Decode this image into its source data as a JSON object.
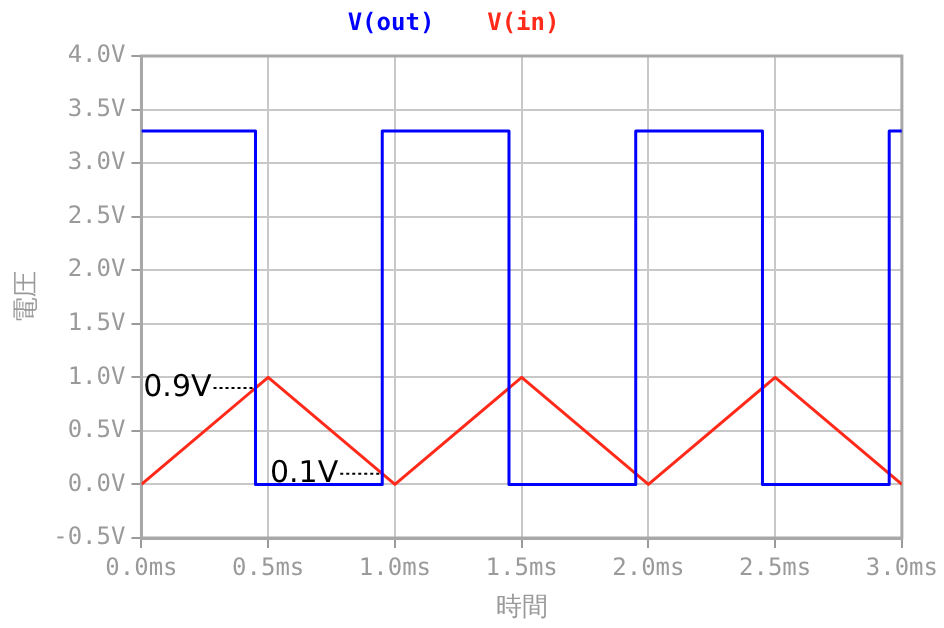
{
  "chart_data": {
    "type": "line",
    "xlabel": "時間",
    "ylabel": "電圧",
    "series": [
      {
        "name": "V(out)",
        "color": "#0000ff",
        "x": [
          0,
          0.45,
          0.45,
          0.95,
          0.95,
          1.45,
          1.45,
          1.95,
          1.95,
          2.45,
          2.45,
          2.95,
          2.95,
          3.0
        ],
        "values": [
          3.3,
          3.3,
          0,
          0,
          3.3,
          3.3,
          0,
          0,
          3.3,
          3.3,
          0,
          0,
          3.3,
          3.3
        ]
      },
      {
        "name": "V(in)",
        "color": "#ff2a1a",
        "x": [
          0,
          0.5,
          1.0,
          1.5,
          2.0,
          2.5,
          3.0
        ],
        "values": [
          0,
          1,
          0,
          1,
          0,
          1,
          0
        ]
      }
    ],
    "xlim": [
      0,
      3.0
    ],
    "xticks": [
      {
        "value": 0,
        "label": "0.0ms"
      },
      {
        "value": 0.5,
        "label": "0.5ms"
      },
      {
        "value": 1.0,
        "label": "1.0ms"
      },
      {
        "value": 1.5,
        "label": "1.5ms"
      },
      {
        "value": 2.0,
        "label": "2.0ms"
      },
      {
        "value": 2.5,
        "label": "2.5ms"
      },
      {
        "value": 3.0,
        "label": "3.0ms"
      }
    ],
    "ylim": [
      -0.5,
      4.0
    ],
    "yticks": [
      {
        "value": -0.5,
        "label": "-0.5V"
      },
      {
        "value": 0,
        "label": "0.0V"
      },
      {
        "value": 0.5,
        "label": "0.5V"
      },
      {
        "value": 1.0,
        "label": "1.0V"
      },
      {
        "value": 1.5,
        "label": "1.5V"
      },
      {
        "value": 2.0,
        "label": "2.0V"
      },
      {
        "value": 2.5,
        "label": "2.5V"
      },
      {
        "value": 3.0,
        "label": "3.0V"
      },
      {
        "value": 3.5,
        "label": "3.5V"
      },
      {
        "value": 4.0,
        "label": "4.0V"
      }
    ],
    "annotations": [
      {
        "text": "0.9V",
        "x": 0.45,
        "y": 0.9
      },
      {
        "text": "0.1V",
        "x": 0.95,
        "y": 0.1
      }
    ],
    "grid": true,
    "legend": "top",
    "marker": "none",
    "line_style": "solid"
  }
}
